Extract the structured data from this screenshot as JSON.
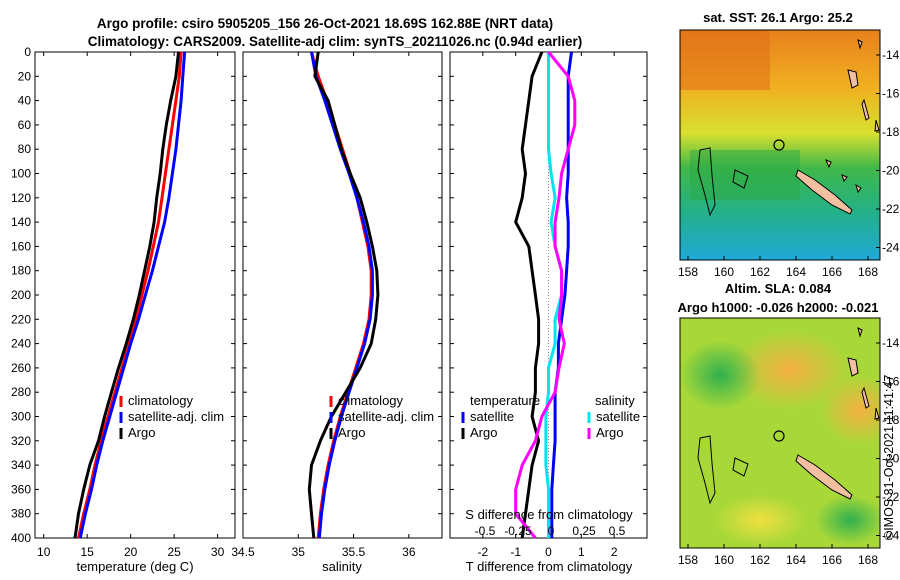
{
  "header": {
    "line1": "Argo profile: csiro 5905205_156 26-Oct-2021 18.69S 162.88E (NRT data)",
    "line2": "Climatology: CARS2009. Satellite-adj clim: synTS_20211026.nc (0.94d earlier)"
  },
  "watermark": "©IMOS 31-Oct-2021 11:41:47",
  "colors": {
    "climatology": "#ff0000",
    "satellite": "#0000ff",
    "argo": "#000000",
    "sal_satellite": "#00e5ee",
    "sal_argo": "#ff00ff"
  },
  "depth_ticks": [
    0,
    20,
    40,
    60,
    80,
    100,
    120,
    140,
    160,
    180,
    200,
    220,
    240,
    260,
    280,
    300,
    320,
    340,
    360,
    380,
    400
  ],
  "chart_data": [
    {
      "id": "temperature",
      "type": "line",
      "xlabel": "temperature (deg C)",
      "xlim": [
        9,
        32
      ],
      "ylim": [
        0,
        400
      ],
      "ylabel": "depth",
      "x_ticks": [
        10,
        15,
        20,
        25,
        30
      ],
      "legend": [
        "climatology",
        "satellite-adj. clim",
        "Argo"
      ],
      "depth": [
        0,
        20,
        40,
        60,
        80,
        100,
        120,
        140,
        160,
        180,
        200,
        220,
        240,
        260,
        280,
        300,
        320,
        340,
        360,
        380,
        400
      ],
      "series": [
        {
          "name": "climatology",
          "color": "#ff0000",
          "values": [
            25.8,
            25.6,
            25.2,
            24.8,
            24.4,
            24.0,
            23.6,
            23.2,
            22.6,
            22.0,
            21.3,
            20.6,
            19.8,
            19.0,
            18.2,
            17.4,
            16.6,
            15.9,
            15.3,
            14.6,
            14.0
          ]
        },
        {
          "name": "satellite-adj. clim",
          "color": "#0000ff",
          "values": [
            26.2,
            26.0,
            25.8,
            25.5,
            25.2,
            24.8,
            24.4,
            23.9,
            23.2,
            22.5,
            21.7,
            20.9,
            20.0,
            19.2,
            18.4,
            17.6,
            16.8,
            16.1,
            15.5,
            14.8,
            14.2
          ]
        },
        {
          "name": "Argo",
          "color": "#000000",
          "values": [
            25.5,
            25.2,
            24.6,
            24.1,
            23.7,
            23.4,
            23.0,
            22.7,
            22.2,
            21.6,
            21.0,
            20.3,
            19.5,
            18.6,
            17.8,
            17.0,
            16.3,
            15.3,
            14.6,
            14.0,
            13.6
          ]
        }
      ]
    },
    {
      "id": "salinity",
      "type": "line",
      "xlabel": "salinity",
      "xlim": [
        34.5,
        36.3
      ],
      "ylim": [
        0,
        400
      ],
      "x_ticks": [
        34.5,
        35,
        35.5,
        36
      ],
      "legend": [
        "climatology",
        "satellite-adj. clim",
        "Argo"
      ],
      "depth": [
        0,
        20,
        40,
        60,
        80,
        100,
        120,
        140,
        160,
        180,
        200,
        220,
        240,
        260,
        280,
        300,
        320,
        340,
        360,
        380,
        400
      ],
      "series": [
        {
          "name": "climatology",
          "color": "#ff0000",
          "values": [
            35.12,
            35.18,
            35.26,
            35.33,
            35.4,
            35.47,
            35.53,
            35.58,
            35.63,
            35.66,
            35.66,
            35.64,
            35.59,
            35.52,
            35.45,
            35.38,
            35.32,
            35.27,
            35.23,
            35.2,
            35.18
          ]
        },
        {
          "name": "satellite-adj. clim",
          "color": "#0000ff",
          "values": [
            35.12,
            35.16,
            35.24,
            35.31,
            35.38,
            35.46,
            35.53,
            35.59,
            35.64,
            35.67,
            35.67,
            35.65,
            35.6,
            35.53,
            35.46,
            35.39,
            35.33,
            35.28,
            35.24,
            35.21,
            35.19
          ]
        },
        {
          "name": "Argo",
          "color": "#000000",
          "values": [
            35.18,
            35.15,
            35.27,
            35.33,
            35.39,
            35.47,
            35.56,
            35.62,
            35.67,
            35.71,
            35.72,
            35.7,
            35.66,
            35.56,
            35.43,
            35.3,
            35.2,
            35.12,
            35.1,
            35.12,
            35.14
          ]
        }
      ]
    },
    {
      "id": "difference",
      "type": "line",
      "xlabel": "T difference from climatology",
      "top_label": "S difference from climatology",
      "xlim": [
        -3,
        3
      ],
      "ylim": [
        0,
        400
      ],
      "x_ticks": [
        -2,
        -1,
        0,
        1,
        2
      ],
      "top_ticks": [
        "-0.5",
        "-0.25",
        "0",
        "0.25",
        "0.5"
      ],
      "legend_titles": [
        "temperature",
        "salinity"
      ],
      "legend": [
        "satellite",
        "Argo",
        "satellite",
        "Argo"
      ],
      "depth": [
        0,
        20,
        40,
        60,
        80,
        100,
        120,
        140,
        160,
        180,
        200,
        220,
        240,
        260,
        280,
        300,
        320,
        340,
        360,
        380,
        400
      ],
      "series": [
        {
          "name": "T satellite",
          "color": "#0000ff",
          "values": [
            0.7,
            0.6,
            0.6,
            0.6,
            0.6,
            0.6,
            0.55,
            0.6,
            0.6,
            0.55,
            0.5,
            0.4,
            0.3,
            0.3,
            0.2,
            0.2,
            0.2,
            0.15,
            0.1,
            0.1,
            0.1
          ]
        },
        {
          "name": "T Argo",
          "color": "#000000",
          "values": [
            -0.2,
            -0.5,
            -0.6,
            -0.7,
            -0.8,
            -0.7,
            -0.8,
            -1.0,
            -0.6,
            -0.5,
            -0.4,
            -0.3,
            -0.3,
            -0.4,
            -0.4,
            -0.5,
            -0.3,
            -0.5,
            -0.6,
            -0.7,
            -0.8
          ]
        },
        {
          "name": "S satellite",
          "color": "#00e5ee",
          "values": [
            0.0,
            0.0,
            0.0,
            0.0,
            0.0,
            0.02,
            0.05,
            0.02,
            0.05,
            0.1,
            0.1,
            0.05,
            0.05,
            0.0,
            0.0,
            -0.02,
            -0.02,
            -0.02,
            0.0,
            0.0,
            0.0
          ]
        },
        {
          "name": "S Argo",
          "color": "#ff00ff",
          "values": [
            0.0,
            0.15,
            0.2,
            0.2,
            0.15,
            0.1,
            0.08,
            0.05,
            0.05,
            0.1,
            0.1,
            0.08,
            0.12,
            0.08,
            0.05,
            -0.05,
            -0.1,
            -0.2,
            -0.25,
            -0.25,
            -0.1
          ]
        }
      ]
    },
    {
      "id": "sst_map",
      "type": "heatmap",
      "title": "sat. SST: 26.1 Argo: 25.2",
      "x_ticks": [
        "158",
        "160",
        "162",
        "164",
        "166",
        "168"
      ],
      "y_ticks": [
        "-14",
        "-16",
        "-18",
        "-20",
        "-22",
        "-24"
      ],
      "argo_position": [
        162.88,
        -18.69
      ]
    },
    {
      "id": "sla_map",
      "type": "heatmap",
      "title_line1": "Altim. SLA: 0.084",
      "title_line2": "Argo h1000: -0.026 h2000: -0.021",
      "x_ticks": [
        "158",
        "160",
        "162",
        "164",
        "166",
        "168"
      ],
      "y_ticks": [
        "-14",
        "-16",
        "-18",
        "-20",
        "-22",
        "-24"
      ],
      "argo_position": [
        162.88,
        -18.69
      ]
    }
  ]
}
